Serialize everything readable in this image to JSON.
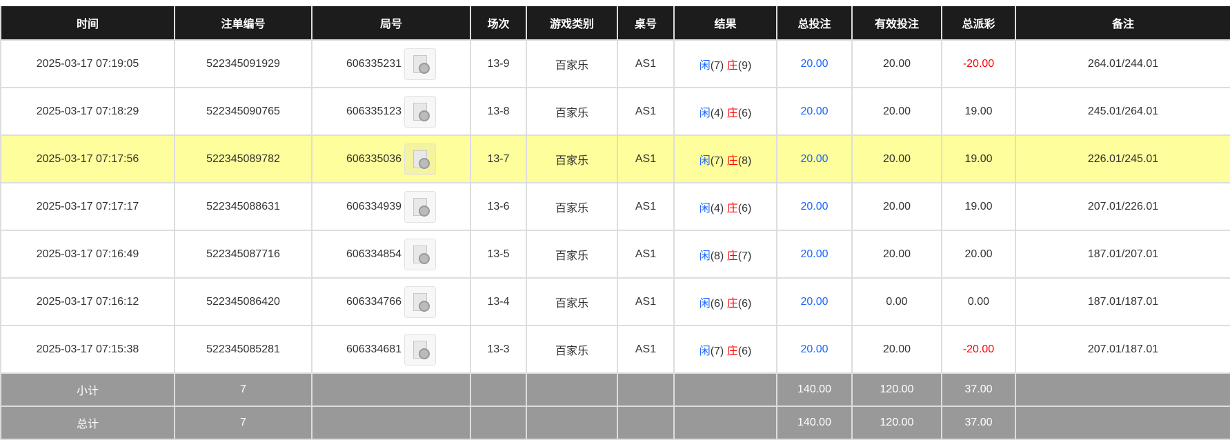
{
  "columns": [
    "时间",
    "注单编号",
    "局号",
    "场次",
    "游戏类别",
    "桌号",
    "结果",
    "总投注",
    "有效投注",
    "总派彩",
    "备注"
  ],
  "rows": [
    {
      "time": "2025-03-17 07:19:05",
      "bet_id": "522345091929",
      "round": "606335231",
      "shoe": "13-9",
      "game": "百家乐",
      "table": "AS1",
      "player": "闲",
      "player_pts": "(7)",
      "banker": "庄",
      "banker_pts": "(9)",
      "total_bet": "20.00",
      "valid_bet": "20.00",
      "payout": "-20.00",
      "payout_negative": true,
      "note": "264.01/244.01",
      "highlighted": false
    },
    {
      "time": "2025-03-17 07:18:29",
      "bet_id": "522345090765",
      "round": "606335123",
      "shoe": "13-8",
      "game": "百家乐",
      "table": "AS1",
      "player": "闲",
      "player_pts": "(4)",
      "banker": "庄",
      "banker_pts": "(6)",
      "total_bet": "20.00",
      "valid_bet": "20.00",
      "payout": "19.00",
      "payout_negative": false,
      "note": "245.01/264.01",
      "highlighted": false
    },
    {
      "time": "2025-03-17 07:17:56",
      "bet_id": "522345089782",
      "round": "606335036",
      "shoe": "13-7",
      "game": "百家乐",
      "table": "AS1",
      "player": "闲",
      "player_pts": "(7)",
      "banker": "庄",
      "banker_pts": "(8)",
      "total_bet": "20.00",
      "valid_bet": "20.00",
      "payout": "19.00",
      "payout_negative": false,
      "note": "226.01/245.01",
      "highlighted": true
    },
    {
      "time": "2025-03-17 07:17:17",
      "bet_id": "522345088631",
      "round": "606334939",
      "shoe": "13-6",
      "game": "百家乐",
      "table": "AS1",
      "player": "闲",
      "player_pts": "(4)",
      "banker": "庄",
      "banker_pts": "(6)",
      "total_bet": "20.00",
      "valid_bet": "20.00",
      "payout": "19.00",
      "payout_negative": false,
      "note": "207.01/226.01",
      "highlighted": false
    },
    {
      "time": "2025-03-17 07:16:49",
      "bet_id": "522345087716",
      "round": "606334854",
      "shoe": "13-5",
      "game": "百家乐",
      "table": "AS1",
      "player": "闲",
      "player_pts": "(8)",
      "banker": "庄",
      "banker_pts": "(7)",
      "total_bet": "20.00",
      "valid_bet": "20.00",
      "payout": "20.00",
      "payout_negative": false,
      "note": "187.01/207.01",
      "highlighted": false
    },
    {
      "time": "2025-03-17 07:16:12",
      "bet_id": "522345086420",
      "round": "606334766",
      "shoe": "13-4",
      "game": "百家乐",
      "table": "AS1",
      "player": "闲",
      "player_pts": "(6)",
      "banker": "庄",
      "banker_pts": "(6)",
      "total_bet": "20.00",
      "valid_bet": "0.00",
      "payout": "0.00",
      "payout_negative": false,
      "note": "187.01/187.01",
      "highlighted": false
    },
    {
      "time": "2025-03-17 07:15:38",
      "bet_id": "522345085281",
      "round": "606334681",
      "shoe": "13-3",
      "game": "百家乐",
      "table": "AS1",
      "player": "闲",
      "player_pts": "(7)",
      "banker": "庄",
      "banker_pts": "(6)",
      "total_bet": "20.00",
      "valid_bet": "20.00",
      "payout": "-20.00",
      "payout_negative": true,
      "note": "207.01/187.01",
      "highlighted": false
    }
  ],
  "summary": [
    {
      "label": "小计",
      "count": "7",
      "total_bet": "140.00",
      "valid_bet": "120.00",
      "payout": "37.00"
    },
    {
      "label": "总计",
      "count": "7",
      "total_bet": "140.00",
      "valid_bet": "120.00",
      "payout": "37.00"
    }
  ],
  "colors": {
    "header_bg": "#1c1c1c",
    "highlight_row": "#fefe9c",
    "summary_bg": "#999999",
    "player_blue": "#1a66ff",
    "banker_red": "#ff0000"
  },
  "icons": {
    "round_video": "video-replay-icon"
  }
}
